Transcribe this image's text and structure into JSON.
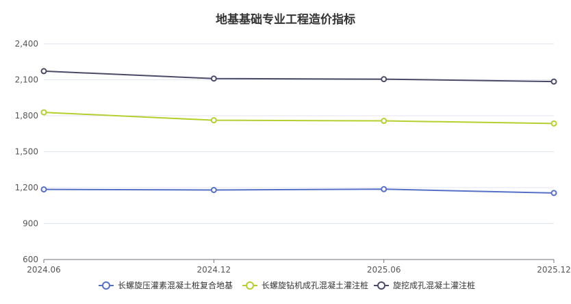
{
  "chart_data": {
    "type": "line",
    "title": "地基基础专业工程造价指标",
    "categories": [
      "2024.06",
      "2024.12",
      "2025.06",
      "2025.12"
    ],
    "ylim": [
      600,
      2400
    ],
    "yticks": [
      600,
      900,
      1200,
      1500,
      1800,
      2100,
      2400
    ],
    "ytick_labels": [
      "600",
      "900",
      "1,200",
      "1,500",
      "1,800",
      "2,100",
      "2,400"
    ],
    "grid": true,
    "legend_position": "bottom",
    "series": [
      {
        "name": "长螺旋压灌素混凝土桩复合地基",
        "color": "#5470c6",
        "values": [
          1185,
          1180,
          1187,
          1155
        ]
      },
      {
        "name": "长螺旋钻机成孔混凝土灌注桩",
        "color": "#b5cf2f",
        "values": [
          1828,
          1762,
          1757,
          1735
        ]
      },
      {
        "name": "旋挖成孔混凝土灌注桩",
        "color": "#4a4a68",
        "values": [
          2172,
          2110,
          2105,
          2085
        ]
      }
    ]
  }
}
